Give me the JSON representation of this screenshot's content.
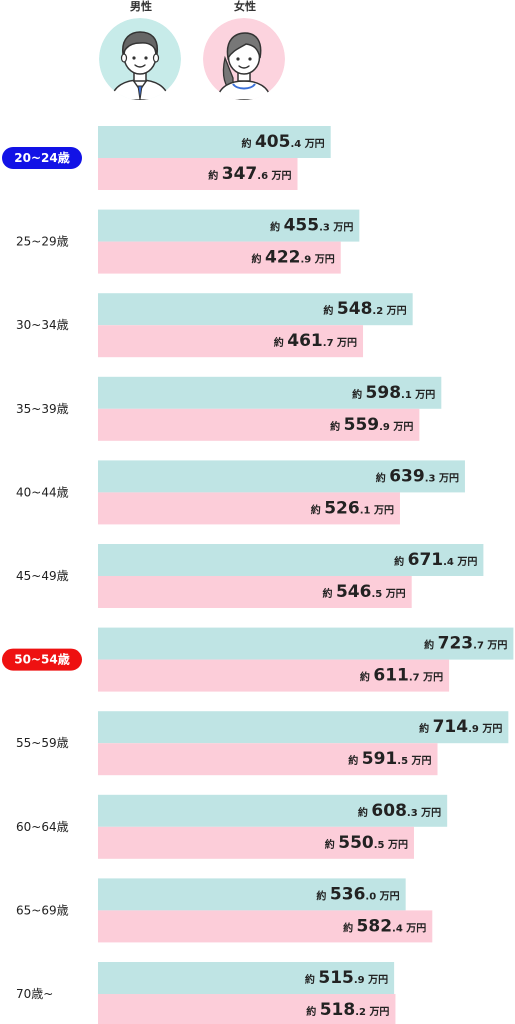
{
  "legend": {
    "male_label": "男性",
    "female_label": "女性",
    "male_avatar_icon": "man-avatar-icon",
    "female_avatar_icon": "woman-avatar-icon"
  },
  "colors": {
    "male_bar": "#bfe4e4",
    "female_bar": "#fccdd9",
    "male_avatar_bg": "#c7ebe9",
    "female_avatar_bg": "#fcd3de",
    "highlight_20_24": "#1212e6",
    "highlight_50_54": "#ee1111"
  },
  "value_prefix": "約",
  "value_unit": "万円",
  "chart_data": {
    "type": "bar",
    "orientation": "horizontal",
    "categories": [
      "20~24歳",
      "25~29歳",
      "30~34歳",
      "35~39歳",
      "40~44歳",
      "45~49歳",
      "50~54歳",
      "55~59歳",
      "60~64歳",
      "65~69歳",
      "70歳~"
    ],
    "highlighted": {
      "20~24歳": "#1212e6",
      "50~54歳": "#ee1111"
    },
    "series": [
      {
        "name": "男性",
        "values": [
          405.4,
          455.3,
          548.2,
          598.1,
          639.3,
          671.4,
          723.7,
          714.9,
          608.3,
          536.0,
          515.9
        ]
      },
      {
        "name": "女性",
        "values": [
          347.6,
          422.9,
          461.7,
          559.9,
          526.1,
          546.5,
          611.7,
          591.5,
          550.5,
          582.4,
          518.2
        ]
      }
    ],
    "value_labels": {
      "男性": [
        "405.4",
        "455.3",
        "548.2",
        "598.1",
        "639.3",
        "671.4",
        "723.7",
        "714.9",
        "608.3",
        "536.0",
        "515.9"
      ],
      "女性": [
        "347.6",
        "422.9",
        "461.7",
        "559.9",
        "526.1",
        "546.5",
        "611.7",
        "591.5",
        "550.5",
        "582.4",
        "518.2"
      ]
    },
    "title": "",
    "xlabel": "",
    "ylabel": "",
    "grid": false
  }
}
